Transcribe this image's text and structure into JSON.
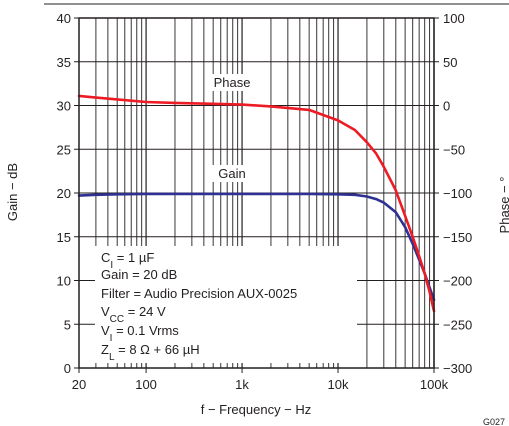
{
  "chart_data": {
    "type": "line",
    "xlabel": "f − Frequency − Hz",
    "ylabel_left": "Gain − dB",
    "ylabel_right": "Phase − °",
    "figure_id": "G027",
    "x_scale": "log",
    "xlim": [
      20,
      100000
    ],
    "ylim_left": [
      0,
      40
    ],
    "ylim_right": [
      -300,
      100
    ],
    "x_tick_values": [
      20,
      100,
      1000,
      10000,
      100000
    ],
    "x_tick_labels": [
      "20",
      "100",
      "1k",
      "10k",
      "100k"
    ],
    "y_left_ticks": [
      "0",
      "5",
      "10",
      "15",
      "20",
      "25",
      "30",
      "35",
      "40"
    ],
    "y_right_ticks": [
      "−300",
      "−250",
      "−200",
      "−150",
      "−100",
      "−50",
      "0",
      "50",
      "100"
    ],
    "grid": true,
    "series": [
      {
        "name": "Gain",
        "axis": "left",
        "color": "#2e3192",
        "x": [
          20,
          30,
          50,
          100,
          200,
          500,
          1000,
          2000,
          5000,
          10000,
          15000,
          20000,
          25000,
          30000,
          40000,
          50000,
          60000,
          70000,
          80000,
          90000,
          100000
        ],
        "y": [
          19.7,
          19.8,
          19.85,
          19.9,
          19.9,
          19.9,
          19.9,
          19.9,
          19.9,
          19.85,
          19.8,
          19.6,
          19.3,
          18.9,
          17.8,
          16.1,
          14.2,
          12.4,
          10.8,
          9.2,
          7.8
        ]
      },
      {
        "name": "Phase",
        "axis": "right",
        "color": "#ed1c24",
        "x": [
          20,
          30,
          50,
          100,
          200,
          500,
          1000,
          2000,
          5000,
          10000,
          15000,
          20000,
          25000,
          30000,
          40000,
          50000,
          60000,
          70000,
          80000,
          90000,
          100000
        ],
        "y": [
          11,
          9,
          7,
          4,
          3,
          2,
          1,
          -1,
          -5,
          -17,
          -28,
          -42,
          -55,
          -70,
          -97,
          -126,
          -150,
          -172,
          -192,
          -213,
          -235
        ]
      }
    ],
    "annotations": [
      {
        "base": "C",
        "sub": "I",
        "rest": " = 1 µF"
      },
      {
        "base": "Gain = 20 dB",
        "sub": "",
        "rest": ""
      },
      {
        "base": "Filter = Audio Precision AUX-0025",
        "sub": "",
        "rest": ""
      },
      {
        "base": "V",
        "sub": "CC",
        "rest": " = 24 V"
      },
      {
        "base": "V",
        "sub": "I",
        "rest": " = 0.1 Vrms"
      },
      {
        "base": "Z",
        "sub": "L",
        "rest": " = 8 Ω + 66 µH"
      }
    ]
  }
}
